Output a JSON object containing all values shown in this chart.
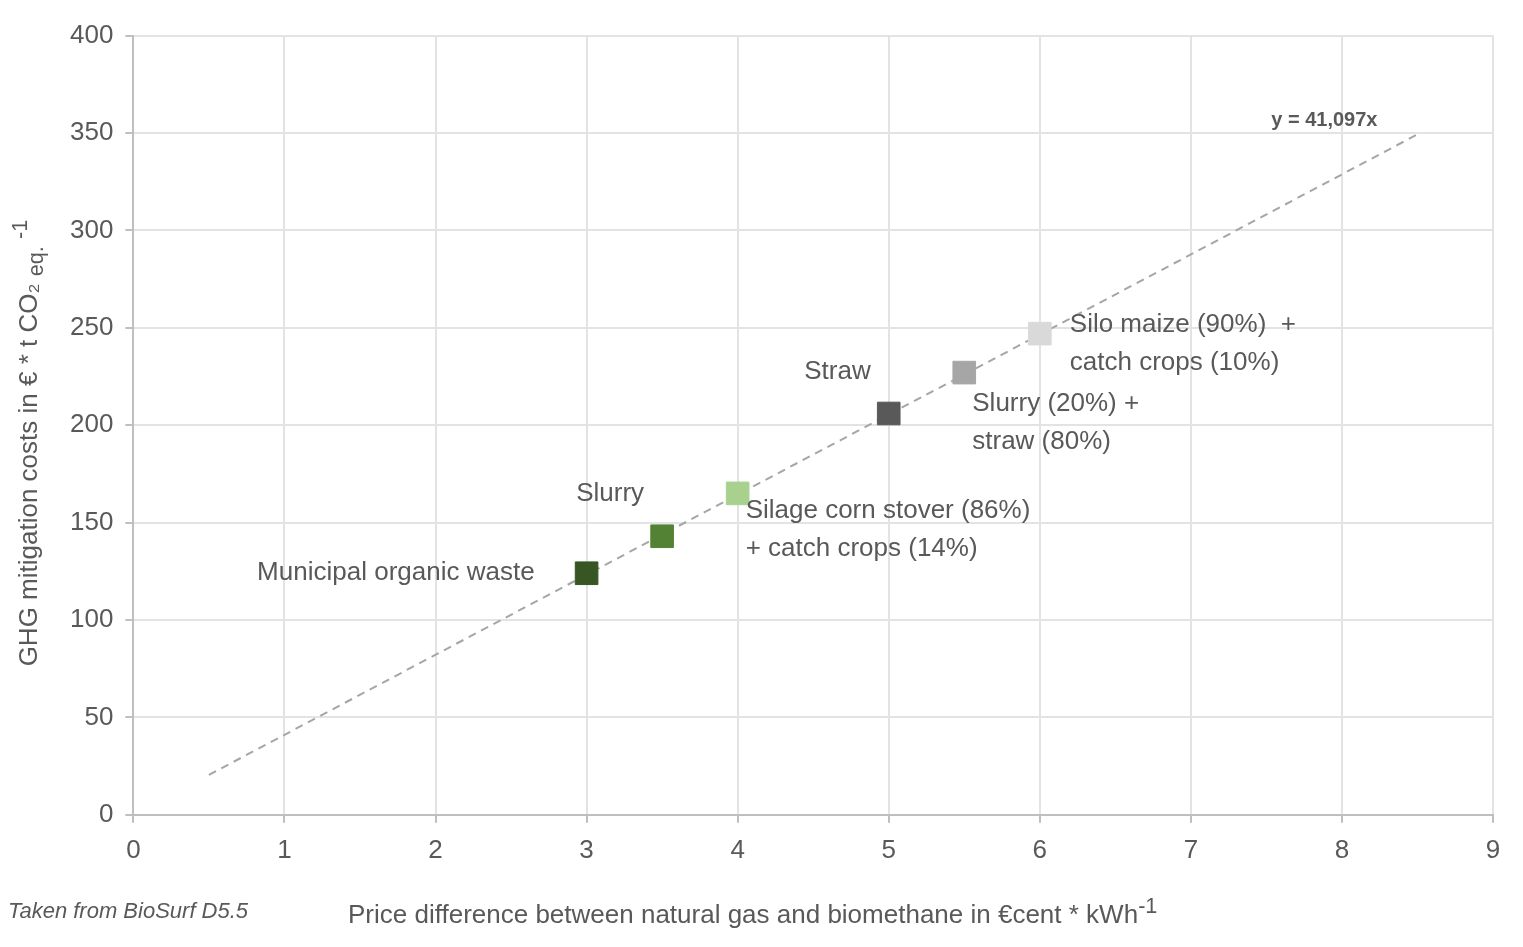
{
  "chart_data": {
    "type": "scatter",
    "xlabel": "Price difference between natural gas and biomethane in €cent * kWh$^{-1}$",
    "ylabel": "GHG mitigation costs in € * t CO₂ $_{eq.}$ $^{-1}$",
    "xlim": [
      0,
      9
    ],
    "xticks": [
      0,
      1,
      2,
      3,
      4,
      5,
      6,
      7,
      8,
      9
    ],
    "ylim": [
      0,
      400
    ],
    "yticks": [
      0,
      50,
      100,
      150,
      200,
      250,
      300,
      350,
      400
    ],
    "grid": true,
    "legend": false,
    "series": [
      {
        "marker": "square",
        "x": [
          3,
          3.5,
          4,
          5,
          5.5,
          6
        ],
        "values": [
          124,
          143,
          165,
          206,
          227,
          247
        ],
        "colors": [
          "#375623",
          "#548235",
          "#a9d18e",
          "#595959",
          "#a6a6a6",
          "#d9d9d9"
        ]
      },
      {
        "type": "line",
        "marker": "none",
        "line_style": "dashed",
        "color": "#a6a6a6",
        "x": [
          0.5,
          8.5
        ],
        "values": [
          20.5,
          349.3
        ]
      }
    ],
    "annotations": [
      {
        "text": "Municipal organic waste",
        "x": 3,
        "y": 124
      },
      {
        "text": "Slurry",
        "x": 3.5,
        "y": 143
      },
      {
        "text": "Silage corn stover (86%)\n+ catch crops (14%)",
        "x": 4,
        "y": 165
      },
      {
        "text": "Straw",
        "x": 5,
        "y": 206
      },
      {
        "text": "Slurry (20%) +\nstraw (80%)",
        "x": 5.5,
        "y": 227
      },
      {
        "text": "Silo maize (90%)  +\ncatch crops (10%)",
        "x": 6,
        "y": 247
      },
      {
        "text": "y = 41,097x",
        "x": 8.5,
        "y": 349.3
      },
      "Taken from BioSurf D5.5"
    ]
  }
}
